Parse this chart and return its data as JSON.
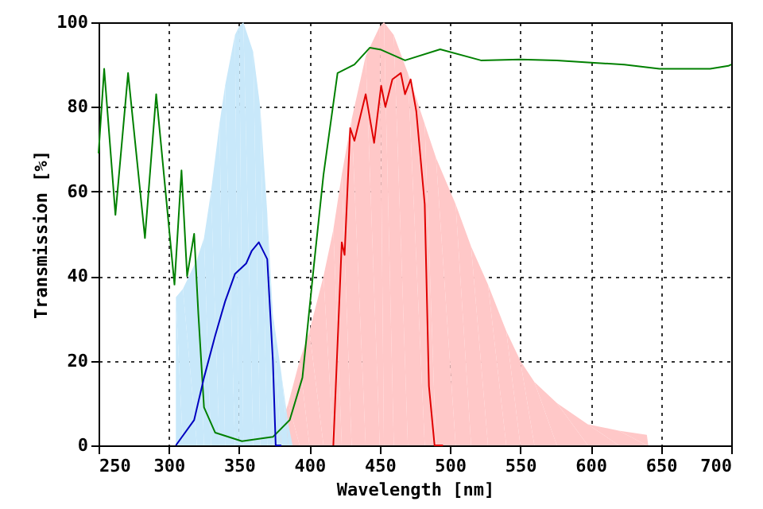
{
  "chart_data": {
    "type": "line",
    "xlabel": "Wavelength [nm]",
    "ylabel": "Transmission [%]",
    "xlim": [
      250,
      700
    ],
    "ylim": [
      0,
      100
    ],
    "xticks": [
      250,
      300,
      350,
      400,
      450,
      500,
      550,
      600,
      650,
      700
    ],
    "yticks": [
      0,
      20,
      40,
      60,
      80,
      100
    ],
    "grid": true,
    "series": [
      {
        "type": "area",
        "color": "#ffc8c8",
        "x": [
          375,
          385,
          393,
          400,
          410,
          417,
          423,
          430,
          440,
          450,
          453,
          460,
          470,
          482,
          490,
          504,
          515,
          527,
          540,
          550,
          560,
          576,
          598,
          620,
          640,
          641
        ],
        "values": [
          0,
          10,
          20,
          27,
          40,
          51,
          64,
          77,
          92,
          99,
          100,
          97,
          88,
          76,
          68,
          57,
          47,
          38,
          27,
          20,
          15,
          10,
          5,
          3.5,
          2.5,
          0
        ]
      },
      {
        "type": "area",
        "color": "#c8e8fa",
        "x": [
          305,
          305,
          310,
          320,
          325,
          330,
          336,
          340,
          347,
          350,
          353,
          360,
          365,
          370,
          374,
          380,
          385,
          388
        ],
        "values": [
          0,
          35,
          37,
          44,
          49,
          60,
          76,
          85,
          97,
          99,
          100,
          93,
          80,
          55,
          31,
          17,
          5,
          0
        ]
      },
      {
        "color": "#008000",
        "x": [
          250,
          254,
          262,
          271,
          283,
          291,
          304,
          309,
          313,
          318,
          321,
          325,
          333,
          352,
          374,
          386,
          395,
          403,
          410,
          420,
          432,
          443,
          451,
          468,
          493,
          522,
          550,
          576,
          598,
          624,
          649,
          685,
          698,
          700
        ],
        "values": [
          69,
          89,
          54.5,
          88,
          49,
          83,
          38,
          65,
          40,
          50,
          31,
          9,
          3,
          1,
          2,
          6,
          16,
          42,
          64,
          88,
          90,
          94,
          93.5,
          91,
          93.6,
          91,
          91.2,
          91,
          90.5,
          90,
          89,
          89,
          89.7,
          90
        ]
      },
      {
        "color": "#0000c0",
        "x": [
          305,
          318,
          325,
          333,
          340,
          347,
          355,
          359,
          364,
          370,
          374,
          376,
          380
        ],
        "values": [
          0,
          6,
          16,
          26,
          34,
          40.5,
          43,
          46,
          48,
          44,
          20,
          0,
          0
        ]
      },
      {
        "color": "#e00000",
        "x": [
          417,
          423,
          425,
          429,
          432,
          440,
          446,
          451,
          454,
          459,
          465,
          468,
          472,
          476,
          482,
          485,
          489,
          495
        ],
        "values": [
          0,
          48,
          45,
          75,
          72,
          83,
          71.5,
          85,
          80,
          86.5,
          88,
          83,
          86.5,
          79,
          57,
          14,
          0,
          0
        ]
      }
    ]
  }
}
